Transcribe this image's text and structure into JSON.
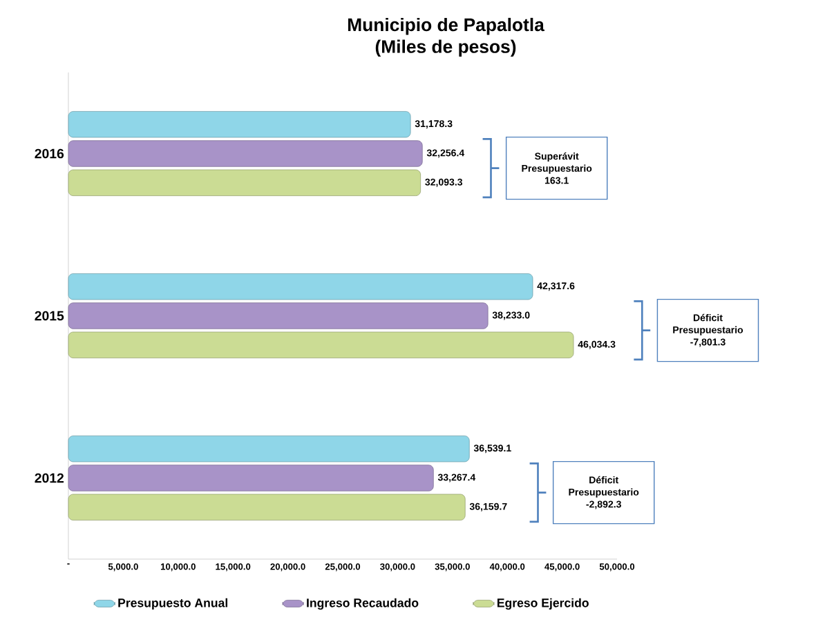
{
  "chart_data": {
    "type": "bar",
    "orientation": "horizontal",
    "title": "Municipio de Papalotla",
    "subtitle": "(Miles de pesos)",
    "categories": [
      "2016",
      "2015",
      "2012"
    ],
    "series": [
      {
        "name": "Presupuesto Anual",
        "color": "#8fd6e8",
        "values": [
          31178.3,
          42317.6,
          36539.1
        ],
        "value_labels": [
          "31,178.3",
          "42,317.6",
          "36,539.1"
        ]
      },
      {
        "name": "Ingreso Recaudado",
        "color": "#a893c8",
        "values": [
          32256.4,
          38233.0,
          33267.4
        ],
        "value_labels": [
          "32,256.4",
          "38,233.0",
          "33,267.4"
        ]
      },
      {
        "name": "Egreso Ejercido",
        "color": "#cbdc94",
        "values": [
          32093.3,
          46034.3,
          36159.7
        ],
        "value_labels": [
          "32,093.3",
          "46,034.3",
          "36,159.7"
        ]
      }
    ],
    "xlim": [
      0,
      50000
    ],
    "xticks": [
      {
        "value": 0,
        "label": "-"
      },
      {
        "value": 5000,
        "label": "5,000.0"
      },
      {
        "value": 10000,
        "label": "10,000.0"
      },
      {
        "value": 15000,
        "label": "15,000.0"
      },
      {
        "value": 20000,
        "label": "20,000.0"
      },
      {
        "value": 25000,
        "label": "25,000.0"
      },
      {
        "value": 30000,
        "label": "30,000.0"
      },
      {
        "value": 35000,
        "label": "35,000.0"
      },
      {
        "value": 40000,
        "label": "40,000.0"
      },
      {
        "value": 45000,
        "label": "45,000.0"
      },
      {
        "value": 50000,
        "label": "50,000.0"
      }
    ],
    "legend": "bottom",
    "annotations": [
      "Superávit Presupuestario 163.1",
      "Déficit Presupuestario -7,801.3",
      "Déficit Presupuestario -2,892.3"
    ]
  }
}
